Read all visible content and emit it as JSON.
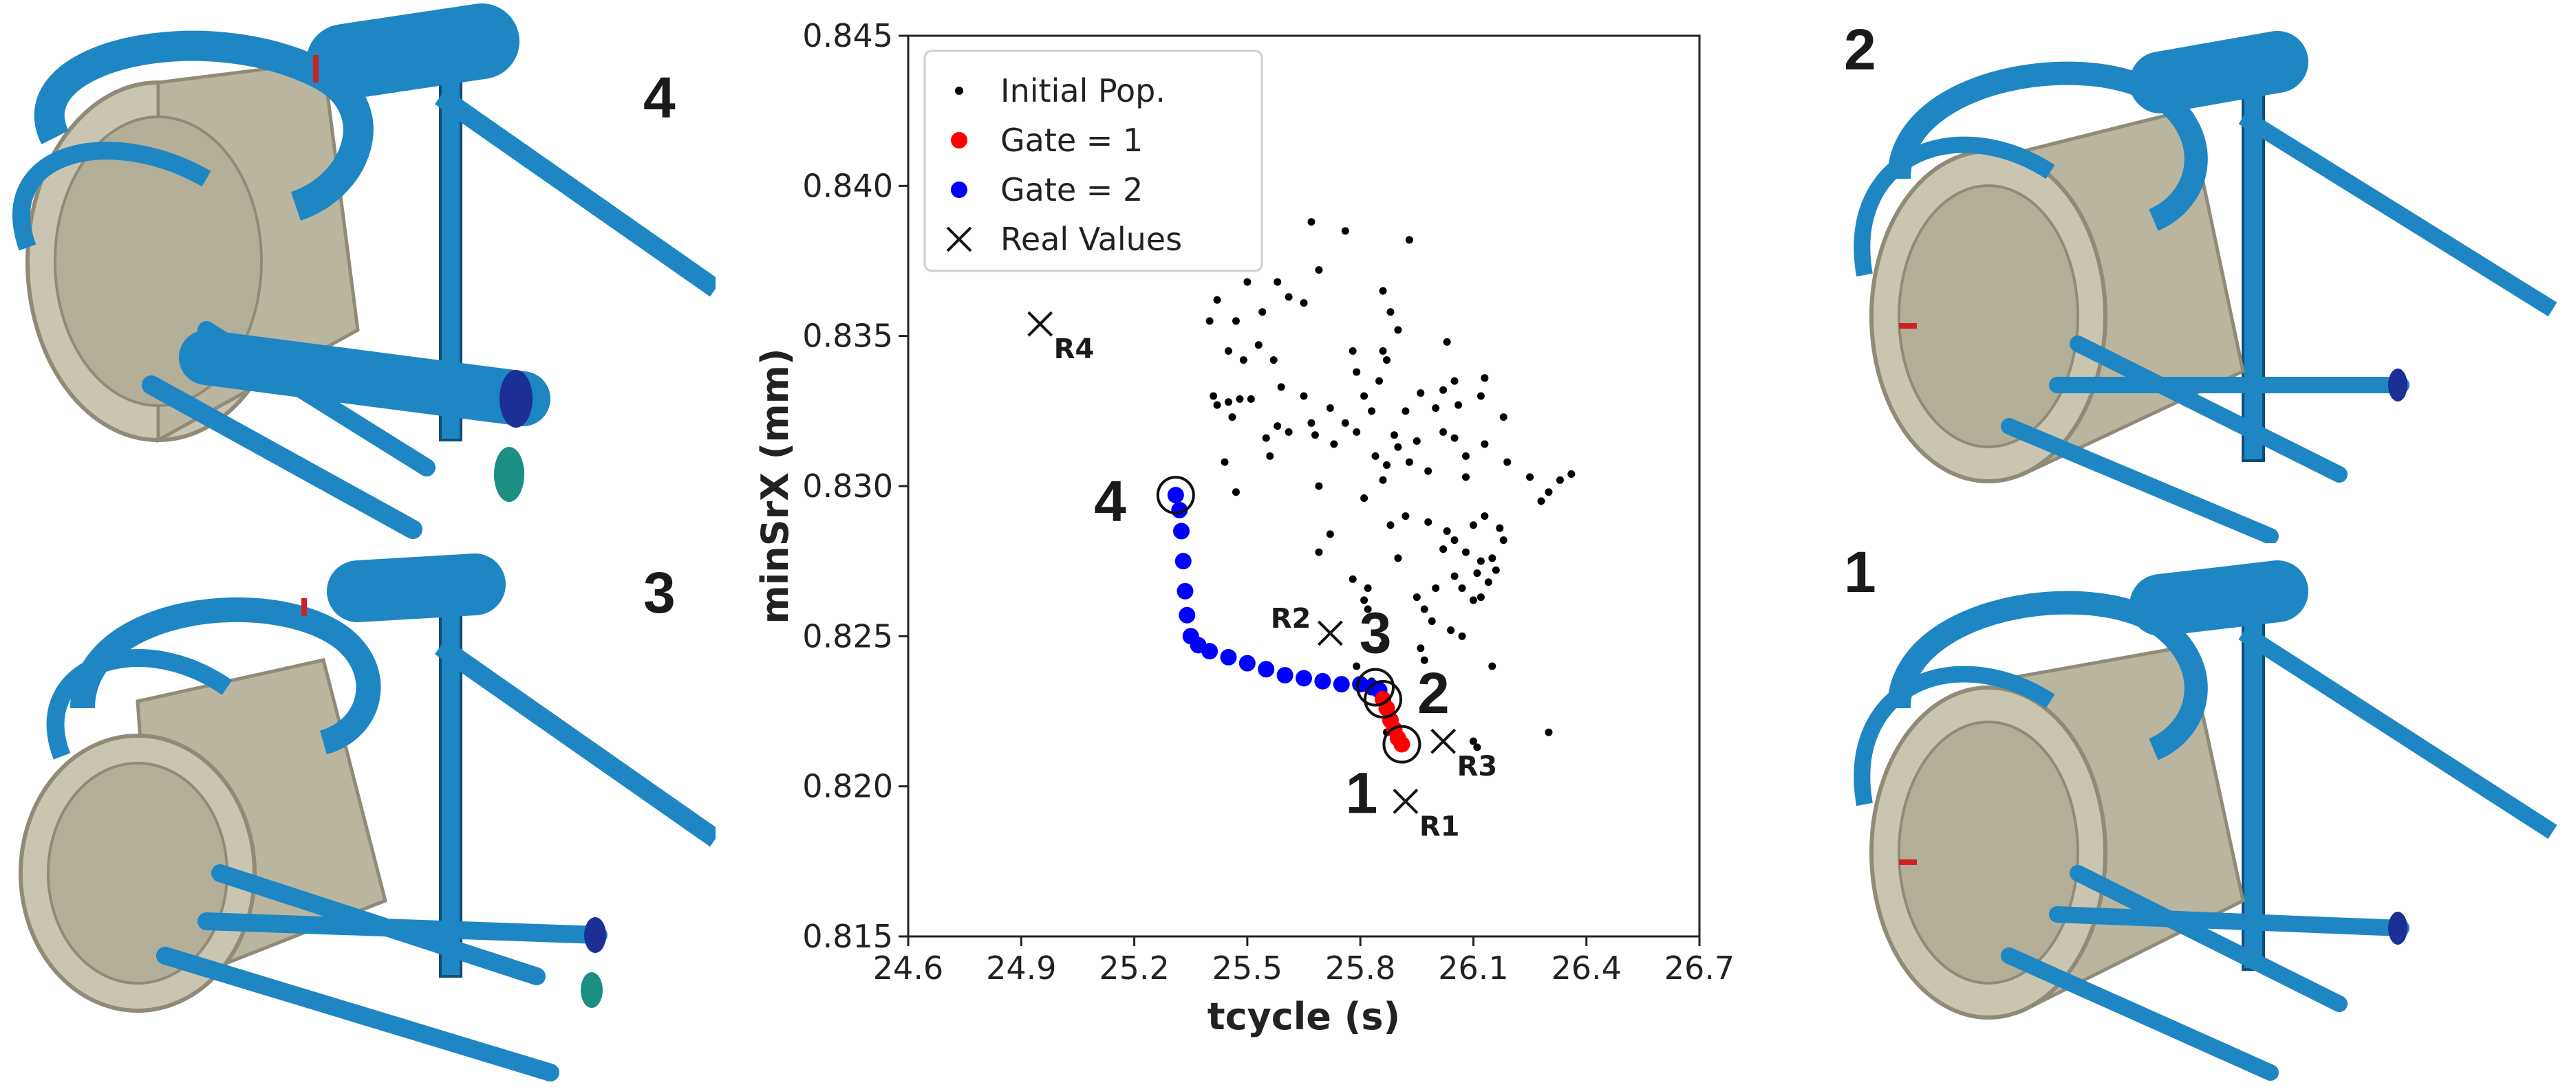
{
  "panels": {
    "top_left_label": "4",
    "bottom_left_label": "3",
    "top_right_label": "2",
    "bottom_right_label": "1"
  },
  "colors": {
    "pipe": "#1f86c4",
    "pipe_dark": "#0e4f7a",
    "core": "#c9c5b0",
    "core_grid": "#8f8b78",
    "pop": "#000000",
    "gate1": "#ff0000",
    "gate2": "#0000ff"
  },
  "chart_data": {
    "type": "scatter",
    "xlabel": "tcycle (s)",
    "ylabel": "minSrX (mm)",
    "xlim": [
      24.6,
      26.7
    ],
    "ylim": [
      0.815,
      0.845
    ],
    "xticks": [
      "24.6",
      "24.9",
      "25.2",
      "25.5",
      "25.8",
      "26.1",
      "26.4",
      "26.7"
    ],
    "yticks": [
      "0.815",
      "0.820",
      "0.825",
      "0.830",
      "0.835",
      "0.840",
      "0.845"
    ],
    "legend": {
      "position": "top-left",
      "items": [
        "Initial Pop.",
        "Gate = 1",
        "Gate = 2",
        "Real Values"
      ]
    },
    "series": [
      {
        "name": "Initial Pop.",
        "points": [
          [
            25.67,
            0.8388
          ],
          [
            25.76,
            0.8385
          ],
          [
            25.93,
            0.8382
          ],
          [
            25.69,
            0.8372
          ],
          [
            25.5,
            0.8368
          ],
          [
            25.58,
            0.8368
          ],
          [
            25.42,
            0.8362
          ],
          [
            25.61,
            0.8363
          ],
          [
            25.65,
            0.8361
          ],
          [
            25.86,
            0.8365
          ],
          [
            25.47,
            0.8355
          ],
          [
            25.54,
            0.8358
          ],
          [
            25.88,
            0.8358
          ],
          [
            25.9,
            0.8352
          ],
          [
            25.4,
            0.8355
          ],
          [
            25.45,
            0.8345
          ],
          [
            25.53,
            0.8347
          ],
          [
            25.49,
            0.8342
          ],
          [
            25.78,
            0.8345
          ],
          [
            25.86,
            0.8345
          ],
          [
            25.87,
            0.8342
          ],
          [
            25.57,
            0.8342
          ],
          [
            26.03,
            0.8348
          ],
          [
            25.79,
            0.8338
          ],
          [
            25.85,
            0.8335
          ],
          [
            26.05,
            0.8335
          ],
          [
            26.13,
            0.8336
          ],
          [
            25.41,
            0.833
          ],
          [
            25.45,
            0.8328
          ],
          [
            25.48,
            0.8329
          ],
          [
            25.51,
            0.8329
          ],
          [
            25.42,
            0.8327
          ],
          [
            25.59,
            0.8333
          ],
          [
            25.65,
            0.833
          ],
          [
            25.72,
            0.8326
          ],
          [
            25.81,
            0.833
          ],
          [
            25.96,
            0.8331
          ],
          [
            26.02,
            0.8332
          ],
          [
            26.06,
            0.8327
          ],
          [
            26.12,
            0.833
          ],
          [
            25.46,
            0.8323
          ],
          [
            25.58,
            0.832
          ],
          [
            25.67,
            0.8321
          ],
          [
            25.76,
            0.8321
          ],
          [
            25.83,
            0.8325
          ],
          [
            25.92,
            0.8325
          ],
          [
            26.0,
            0.8326
          ],
          [
            26.18,
            0.8323
          ],
          [
            25.55,
            0.8316
          ],
          [
            25.61,
            0.8318
          ],
          [
            25.68,
            0.8317
          ],
          [
            25.73,
            0.8314
          ],
          [
            25.79,
            0.8318
          ],
          [
            25.89,
            0.8317
          ],
          [
            25.9,
            0.8313
          ],
          [
            25.95,
            0.8315
          ],
          [
            26.02,
            0.8318
          ],
          [
            26.05,
            0.8316
          ],
          [
            26.13,
            0.8314
          ],
          [
            25.44,
            0.8308
          ],
          [
            25.56,
            0.831
          ],
          [
            25.84,
            0.831
          ],
          [
            25.87,
            0.8307
          ],
          [
            25.93,
            0.8308
          ],
          [
            26.08,
            0.831
          ],
          [
            26.19,
            0.8308
          ],
          [
            26.25,
            0.8303
          ],
          [
            26.33,
            0.8302
          ],
          [
            26.36,
            0.8304
          ],
          [
            25.86,
            0.8302
          ],
          [
            25.81,
            0.8296
          ],
          [
            25.98,
            0.8305
          ],
          [
            26.08,
            0.8303
          ],
          [
            25.47,
            0.8298
          ],
          [
            25.69,
            0.83
          ],
          [
            26.3,
            0.8298
          ],
          [
            26.28,
            0.8295
          ],
          [
            25.92,
            0.829
          ],
          [
            25.98,
            0.8288
          ],
          [
            26.1,
            0.8287
          ],
          [
            26.13,
            0.829
          ],
          [
            26.17,
            0.8286
          ],
          [
            25.72,
            0.8284
          ],
          [
            25.88,
            0.8287
          ],
          [
            26.03,
            0.8285
          ],
          [
            26.05,
            0.8282
          ],
          [
            26.18,
            0.8282
          ],
          [
            25.69,
            0.8278
          ],
          [
            26.02,
            0.8279
          ],
          [
            26.08,
            0.8278
          ],
          [
            26.15,
            0.8276
          ],
          [
            25.9,
            0.8276
          ],
          [
            26.12,
            0.8275
          ],
          [
            26.16,
            0.8272
          ],
          [
            26.11,
            0.8271
          ],
          [
            25.78,
            0.8269
          ],
          [
            25.82,
            0.8266
          ],
          [
            26.05,
            0.827
          ],
          [
            26.14,
            0.8268
          ],
          [
            26.07,
            0.8266
          ],
          [
            25.95,
            0.8263
          ],
          [
            26.0,
            0.8266
          ],
          [
            25.81,
            0.8262
          ],
          [
            26.12,
            0.8263
          ],
          [
            26.1,
            0.8262
          ],
          [
            25.97,
            0.8259
          ],
          [
            25.82,
            0.8259
          ],
          [
            25.99,
            0.8255
          ],
          [
            26.04,
            0.8252
          ],
          [
            26.07,
            0.825
          ],
          [
            25.86,
            0.8247
          ],
          [
            25.96,
            0.8246
          ],
          [
            26.15,
            0.824
          ],
          [
            25.97,
            0.8242
          ],
          [
            25.79,
            0.824
          ],
          [
            25.83,
            0.8235
          ],
          [
            26.1,
            0.8215
          ],
          [
            26.11,
            0.8213
          ],
          [
            26.3,
            0.8218
          ],
          [
            25.87,
            0.8218
          ]
        ]
      },
      {
        "name": "Gate = 1",
        "points": [
          [
            25.86,
            0.8229
          ],
          [
            25.87,
            0.8226
          ],
          [
            25.88,
            0.8222
          ],
          [
            25.89,
            0.8219
          ],
          [
            25.9,
            0.8216
          ],
          [
            25.91,
            0.8214
          ]
        ]
      },
      {
        "name": "Gate = 2",
        "points": [
          [
            25.31,
            0.8297
          ],
          [
            25.32,
            0.8292
          ],
          [
            25.325,
            0.8285
          ],
          [
            25.33,
            0.8275
          ],
          [
            25.335,
            0.8265
          ],
          [
            25.34,
            0.8257
          ],
          [
            25.35,
            0.825
          ],
          [
            25.37,
            0.8247
          ],
          [
            25.4,
            0.8245
          ],
          [
            25.45,
            0.8243
          ],
          [
            25.5,
            0.8241
          ],
          [
            25.55,
            0.8239
          ],
          [
            25.6,
            0.8237
          ],
          [
            25.65,
            0.8236
          ],
          [
            25.7,
            0.8235
          ],
          [
            25.75,
            0.8234
          ],
          [
            25.8,
            0.8234
          ],
          [
            25.83,
            0.8233
          ],
          [
            25.85,
            0.8232
          ]
        ]
      },
      {
        "name": "Real Values",
        "points": [
          [
            24.95,
            0.8354
          ],
          [
            25.72,
            0.8251
          ],
          [
            26.02,
            0.8215
          ],
          [
            25.92,
            0.8195
          ]
        ],
        "labels": [
          "R4",
          "R2",
          "R3",
          "R1"
        ]
      }
    ],
    "highlighted_points": [
      {
        "label": "4",
        "x": 25.31,
        "y": 0.8297
      },
      {
        "label": "3",
        "x": 25.84,
        "y": 0.8233
      },
      {
        "label": "2",
        "x": 25.86,
        "y": 0.8229
      },
      {
        "label": "1",
        "x": 25.91,
        "y": 0.8214
      }
    ]
  }
}
